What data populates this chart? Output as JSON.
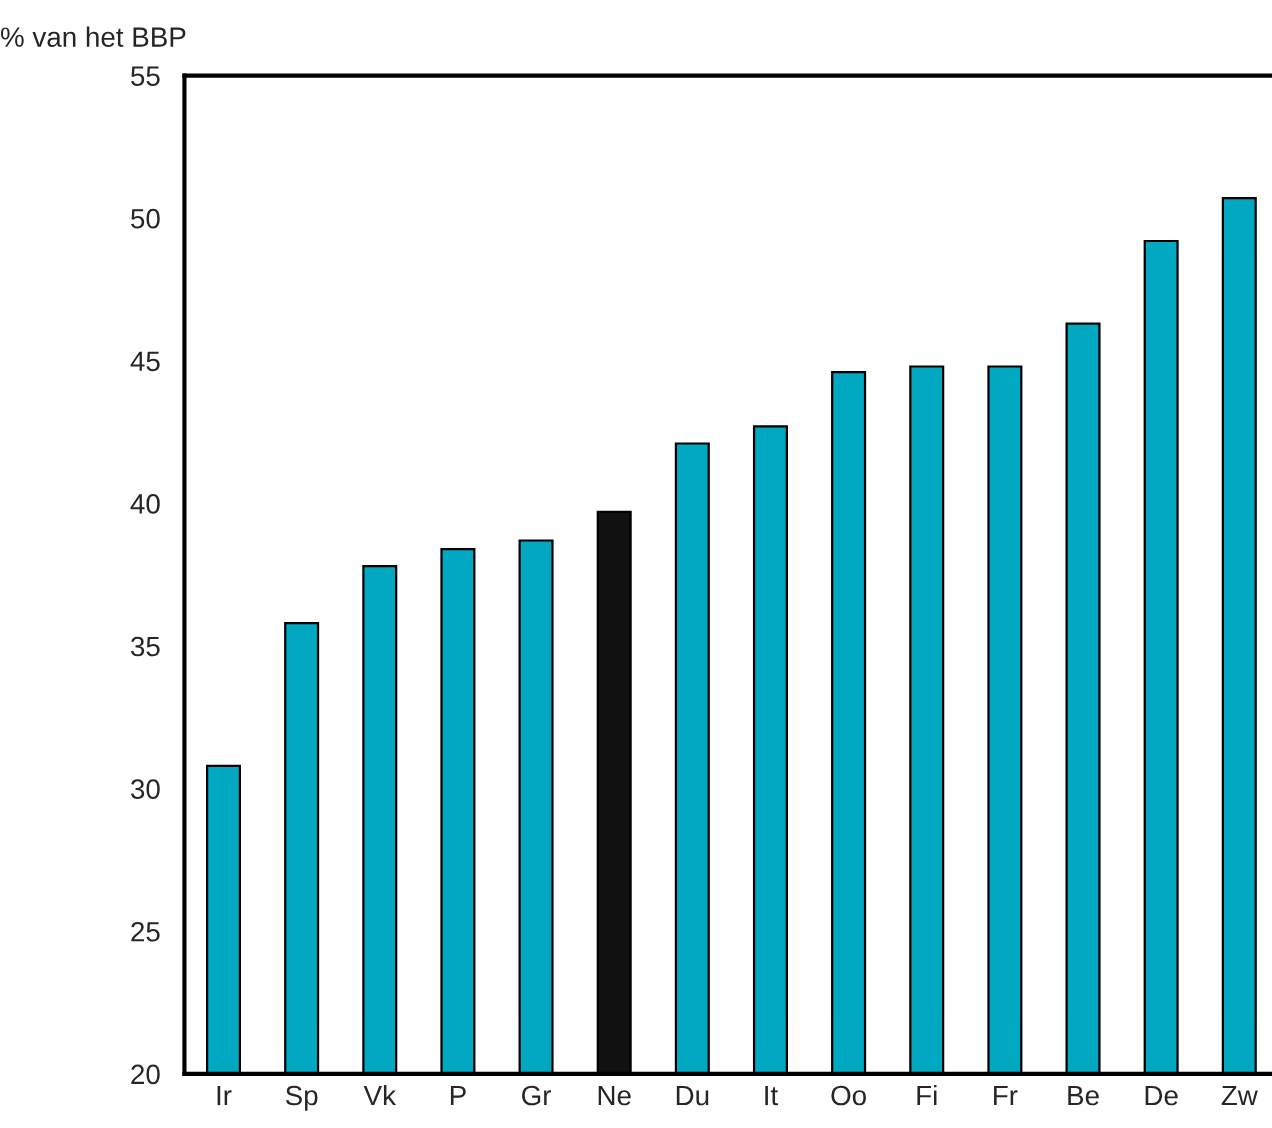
{
  "chart_data": {
    "type": "bar",
    "ylabel": "% van het BBP",
    "categories": [
      "Ir",
      "Sp",
      "Vk",
      "P",
      "Gr",
      "Ne",
      "Du",
      "It",
      "Oo",
      "Fi",
      "Fr",
      "Be",
      "De",
      "Zw"
    ],
    "values": [
      30.8,
      35.8,
      37.8,
      38.4,
      38.7,
      39.7,
      42.1,
      42.7,
      44.6,
      44.8,
      44.8,
      46.3,
      49.2,
      50.7
    ],
    "colors": [
      "#00a8c2",
      "#00a8c2",
      "#00a8c2",
      "#00a8c2",
      "#00a8c2",
      "#111111",
      "#00a8c2",
      "#00a8c2",
      "#00a8c2",
      "#00a8c2",
      "#00a8c2",
      "#00a8c2",
      "#00a8c2",
      "#00a8c2"
    ],
    "ylim": [
      20,
      55
    ],
    "yticks": [
      20,
      25,
      30,
      35,
      40,
      45,
      50,
      55
    ],
    "grid": false,
    "legend": false
  }
}
